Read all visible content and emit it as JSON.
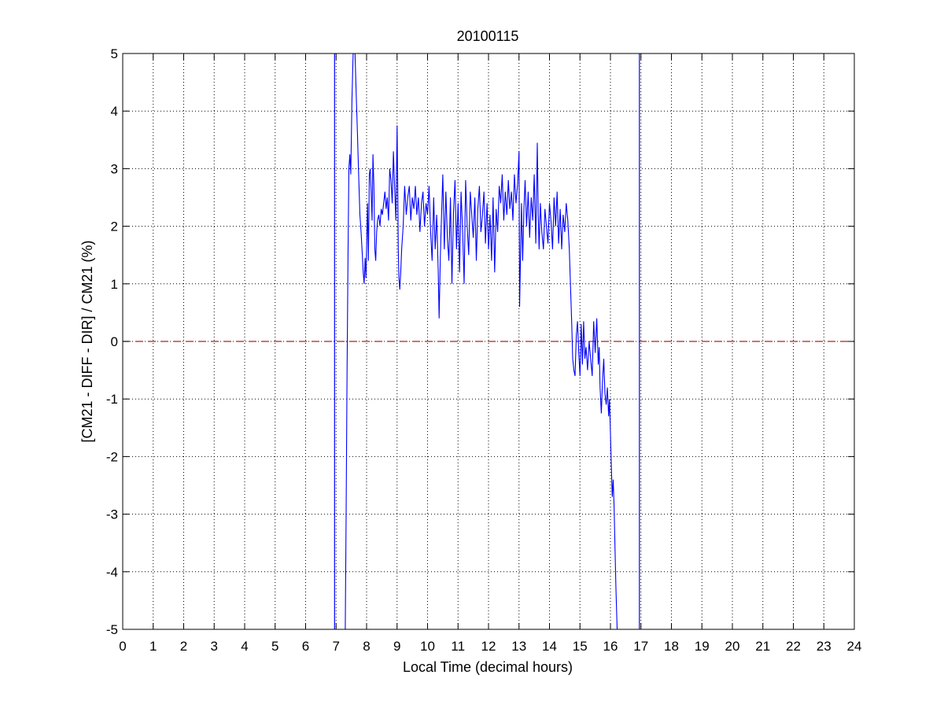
{
  "chart_data": {
    "type": "line",
    "title": "20100115",
    "xlabel": "Local Time (decimal hours)",
    "ylabel": "[CM21 - DIFF - DIR] / CM21 (%)",
    "xlim": [
      0,
      24
    ],
    "ylim": [
      -5,
      5
    ],
    "xticks": [
      0,
      1,
      2,
      3,
      4,
      5,
      6,
      7,
      8,
      9,
      10,
      11,
      12,
      13,
      14,
      15,
      16,
      17,
      18,
      19,
      20,
      21,
      22,
      23,
      24
    ],
    "yticks": [
      -5,
      -4,
      -3,
      -2,
      -1,
      0,
      1,
      2,
      3,
      4,
      5
    ],
    "grid": true,
    "series_color": "#0000ff",
    "zero_line_color": "#b22222",
    "vertical_lines": [
      6.95,
      16.95
    ],
    "zero_line": 0,
    "series": [
      {
        "values": [
          [
            7.3,
            -5.0
          ],
          [
            7.33,
            -3.0
          ],
          [
            7.36,
            -0.5
          ],
          [
            7.39,
            1.5
          ],
          [
            7.42,
            3.0
          ],
          [
            7.45,
            3.25
          ],
          [
            7.48,
            2.9
          ],
          [
            7.52,
            4.2
          ],
          [
            7.56,
            5.0
          ],
          [
            7.62,
            5.0
          ],
          [
            7.66,
            4.3
          ],
          [
            7.7,
            3.6
          ],
          [
            7.74,
            2.9
          ],
          [
            7.78,
            2.2
          ],
          [
            7.82,
            1.9
          ],
          [
            7.86,
            1.5
          ],
          [
            7.89,
            1.2
          ],
          [
            7.92,
            1.0
          ],
          [
            7.95,
            1.45
          ],
          [
            7.98,
            1.1
          ],
          [
            8.0,
            1.6
          ],
          [
            8.03,
            2.4
          ],
          [
            8.06,
            1.4
          ],
          [
            8.09,
            2.9
          ],
          [
            8.12,
            3.0
          ],
          [
            8.15,
            2.6
          ],
          [
            8.18,
            2.1
          ],
          [
            8.21,
            3.25
          ],
          [
            8.24,
            2.7
          ],
          [
            8.27,
            1.6
          ],
          [
            8.3,
            1.4
          ],
          [
            8.33,
            1.9
          ],
          [
            8.36,
            2.1
          ],
          [
            8.4,
            2.2
          ],
          [
            8.44,
            2.0
          ],
          [
            8.48,
            2.3
          ],
          [
            8.52,
            2.2
          ],
          [
            8.56,
            2.4
          ],
          [
            8.6,
            2.6
          ],
          [
            8.64,
            2.3
          ],
          [
            8.68,
            2.5
          ],
          [
            8.72,
            2.1
          ],
          [
            8.76,
            3.0
          ],
          [
            8.8,
            2.8
          ],
          [
            8.84,
            2.4
          ],
          [
            8.88,
            3.3
          ],
          [
            8.92,
            2.7
          ],
          [
            8.96,
            2.1
          ],
          [
            9.0,
            3.75
          ],
          [
            9.02,
            2.8
          ],
          [
            9.04,
            1.6
          ],
          [
            9.06,
            1.1
          ],
          [
            9.09,
            0.9
          ],
          [
            9.12,
            1.2
          ],
          [
            9.15,
            1.6
          ],
          [
            9.2,
            2.0
          ],
          [
            9.25,
            2.7
          ],
          [
            9.3,
            2.2
          ],
          [
            9.35,
            2.5
          ],
          [
            9.4,
            2.7
          ],
          [
            9.45,
            2.1
          ],
          [
            9.5,
            2.5
          ],
          [
            9.55,
            2.3
          ],
          [
            9.6,
            2.7
          ],
          [
            9.65,
            2.2
          ],
          [
            9.7,
            2.5
          ],
          [
            9.75,
            1.9
          ],
          [
            9.8,
            2.4
          ],
          [
            9.85,
            2.6
          ],
          [
            9.9,
            2.0
          ],
          [
            9.95,
            2.4
          ],
          [
            10.0,
            2.2
          ],
          [
            10.05,
            2.7
          ],
          [
            10.1,
            1.9
          ],
          [
            10.15,
            1.4
          ],
          [
            10.2,
            2.5
          ],
          [
            10.25,
            1.6
          ],
          [
            10.3,
            2.2
          ],
          [
            10.35,
            1.2
          ],
          [
            10.38,
            0.4
          ],
          [
            10.42,
            1.5
          ],
          [
            10.46,
            2.2
          ],
          [
            10.5,
            2.9
          ],
          [
            10.55,
            1.6
          ],
          [
            10.6,
            2.6
          ],
          [
            10.65,
            1.8
          ],
          [
            10.7,
            1.4
          ],
          [
            10.75,
            2.5
          ],
          [
            10.8,
            1.0
          ],
          [
            10.85,
            2.2
          ],
          [
            10.9,
            2.8
          ],
          [
            10.95,
            1.6
          ],
          [
            11.0,
            2.4
          ],
          [
            11.05,
            1.2
          ],
          [
            11.1,
            2.6
          ],
          [
            11.15,
            1.9
          ],
          [
            11.2,
            1.0
          ],
          [
            11.25,
            2.8
          ],
          [
            11.3,
            2.0
          ],
          [
            11.35,
            1.5
          ],
          [
            11.4,
            2.6
          ],
          [
            11.45,
            2.2
          ],
          [
            11.5,
            1.8
          ],
          [
            11.55,
            2.5
          ],
          [
            11.6,
            1.4
          ],
          [
            11.65,
            2.3
          ],
          [
            11.7,
            2.7
          ],
          [
            11.75,
            1.9
          ],
          [
            11.8,
            2.2
          ],
          [
            11.85,
            2.6
          ],
          [
            11.9,
            1.7
          ],
          [
            11.95,
            2.4
          ],
          [
            12.0,
            1.6
          ],
          [
            12.05,
            2.2
          ],
          [
            12.1,
            1.4
          ],
          [
            12.15,
            2.5
          ],
          [
            12.2,
            1.2
          ],
          [
            12.25,
            2.3
          ],
          [
            12.3,
            1.9
          ],
          [
            12.35,
            2.7
          ],
          [
            12.4,
            2.4
          ],
          [
            12.45,
            2.9
          ],
          [
            12.5,
            2.1
          ],
          [
            12.55,
            2.6
          ],
          [
            12.6,
            2.2
          ],
          [
            12.65,
            2.8
          ],
          [
            12.7,
            2.3
          ],
          [
            12.75,
            2.6
          ],
          [
            12.8,
            2.1
          ],
          [
            12.85,
            2.9
          ],
          [
            12.9,
            2.4
          ],
          [
            12.95,
            2.7
          ],
          [
            13.0,
            3.3
          ],
          [
            13.02,
            0.6
          ],
          [
            13.05,
            1.5
          ],
          [
            13.08,
            2.4
          ],
          [
            13.12,
            1.4
          ],
          [
            13.16,
            2.3
          ],
          [
            13.2,
            2.8
          ],
          [
            13.25,
            2.0
          ],
          [
            13.3,
            2.6
          ],
          [
            13.35,
            1.8
          ],
          [
            13.4,
            2.5
          ],
          [
            13.45,
            2.1
          ],
          [
            13.5,
            2.9
          ],
          [
            13.55,
            1.7
          ],
          [
            13.6,
            3.45
          ],
          [
            13.63,
            2.2
          ],
          [
            13.66,
            1.6
          ],
          [
            13.7,
            2.4
          ],
          [
            13.75,
            1.9
          ],
          [
            13.8,
            1.6
          ],
          [
            13.85,
            2.3
          ],
          [
            13.9,
            2.0
          ],
          [
            13.95,
            1.7
          ],
          [
            14.0,
            2.4
          ],
          [
            14.05,
            2.1
          ],
          [
            14.1,
            1.6
          ],
          [
            14.15,
            2.5
          ],
          [
            14.2,
            2.0
          ],
          [
            14.25,
            2.6
          ],
          [
            14.3,
            1.7
          ],
          [
            14.35,
            2.3
          ],
          [
            14.4,
            1.6
          ],
          [
            14.45,
            2.2
          ],
          [
            14.5,
            1.9
          ],
          [
            14.55,
            2.4
          ],
          [
            14.6,
            2.1
          ],
          [
            14.65,
            1.6
          ],
          [
            14.7,
            0.8
          ],
          [
            14.73,
            0.3
          ],
          [
            14.76,
            -0.3
          ],
          [
            14.8,
            -0.5
          ],
          [
            14.84,
            -0.6
          ],
          [
            14.88,
            0.1
          ],
          [
            14.92,
            0.35
          ],
          [
            14.96,
            -0.2
          ],
          [
            15.0,
            -0.6
          ],
          [
            15.04,
            0.3
          ],
          [
            15.08,
            -0.4
          ],
          [
            15.12,
            0.35
          ],
          [
            15.16,
            -0.3
          ],
          [
            15.2,
            -0.1
          ],
          [
            15.25,
            -0.5
          ],
          [
            15.3,
            0.0
          ],
          [
            15.35,
            -0.3
          ],
          [
            15.4,
            -0.6
          ],
          [
            15.45,
            0.35
          ],
          [
            15.5,
            -0.2
          ],
          [
            15.55,
            0.4
          ],
          [
            15.6,
            -0.4
          ],
          [
            15.63,
            -0.1
          ],
          [
            15.66,
            -0.8
          ],
          [
            15.7,
            -1.25
          ],
          [
            15.74,
            -0.7
          ],
          [
            15.78,
            -0.3
          ],
          [
            15.82,
            -0.9
          ],
          [
            15.86,
            -1.1
          ],
          [
            15.9,
            -0.8
          ],
          [
            15.94,
            -1.3
          ],
          [
            15.97,
            -1.0
          ],
          [
            16.0,
            -1.6
          ],
          [
            16.03,
            -2.2
          ],
          [
            16.06,
            -2.7
          ],
          [
            16.09,
            -2.4
          ],
          [
            16.12,
            -2.9
          ],
          [
            16.15,
            -3.6
          ],
          [
            16.18,
            -4.3
          ],
          [
            16.22,
            -5.0
          ]
        ]
      }
    ]
  }
}
